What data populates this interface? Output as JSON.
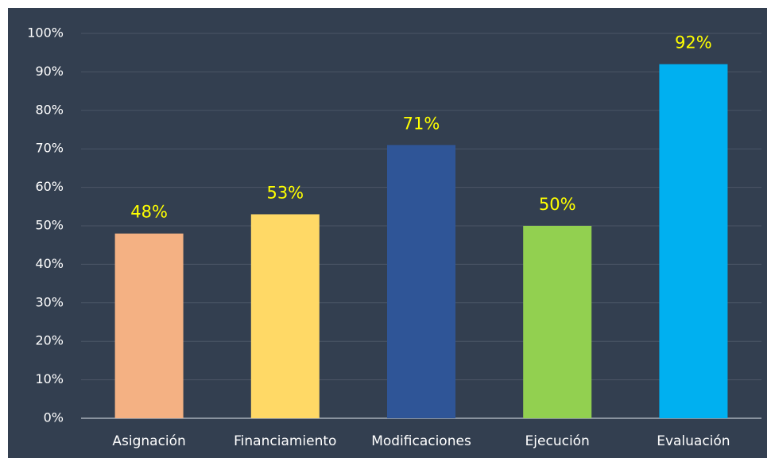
{
  "chart_data": {
    "type": "bar",
    "categories": [
      "Asignación",
      "Financiamiento",
      "Modificaciones",
      "Ejecución",
      "Evaluación"
    ],
    "values": [
      48,
      53,
      71,
      50,
      92
    ],
    "value_labels": [
      "48%",
      "53%",
      "71%",
      "50%",
      "92%"
    ],
    "colors": [
      "#f4b183",
      "#ffd966",
      "#2f5597",
      "#92d050",
      "#00b0f0"
    ],
    "ylim": [
      0,
      100
    ],
    "yticks": [
      {
        "value": 0,
        "label": "0%"
      },
      {
        "value": 10,
        "label": "10%"
      },
      {
        "value": 20,
        "label": "20%"
      },
      {
        "value": 30,
        "label": "30%"
      },
      {
        "value": 40,
        "label": "40%"
      },
      {
        "value": 50,
        "label": "50%"
      },
      {
        "value": 60,
        "label": "60%"
      },
      {
        "value": 70,
        "label": "70%"
      },
      {
        "value": 80,
        "label": "80%"
      },
      {
        "value": 90,
        "label": "90%"
      },
      {
        "value": 100,
        "label": "100%"
      }
    ],
    "grid": true
  }
}
